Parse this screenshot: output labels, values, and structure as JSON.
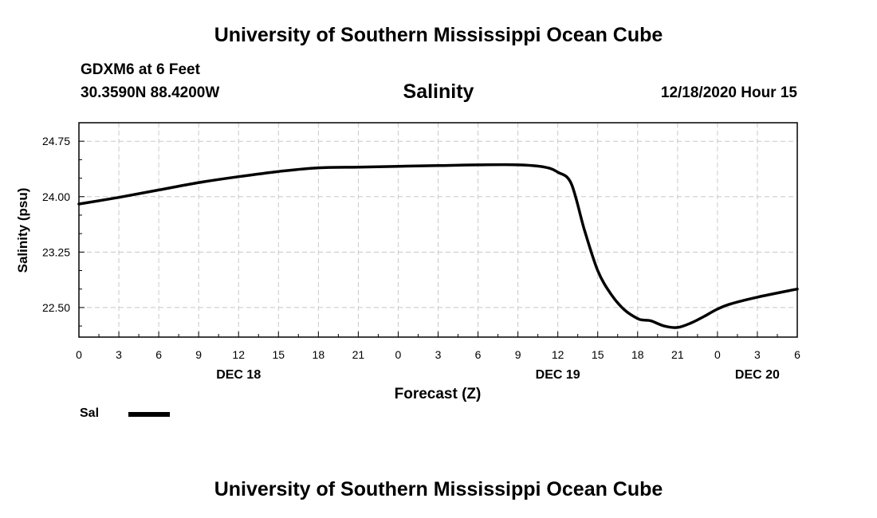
{
  "header": {
    "title": "University of Southern Mississippi Ocean Cube",
    "station": "GDXM6 at 6 Feet",
    "coords": "30.3590N 88.4200W",
    "date": "12/18/2020 Hour 15"
  },
  "footer": {
    "title": "University of Southern Mississippi Ocean Cube"
  },
  "legend": {
    "label": "Sal",
    "color": "#000000"
  },
  "chart_data": {
    "type": "line",
    "title": "Salinity",
    "xlabel": "Forecast (Z)",
    "ylabel": "Salinity (psu)",
    "xlim": [
      0,
      54
    ],
    "ylim": [
      22.1,
      25.0
    ],
    "grid": true,
    "x_ticks": [
      0,
      3,
      6,
      9,
      12,
      15,
      18,
      21,
      24,
      27,
      30,
      33,
      36,
      39,
      42,
      45,
      48,
      51,
      54
    ],
    "x_tick_labels": [
      "0",
      "3",
      "6",
      "9",
      "12",
      "15",
      "18",
      "21",
      "0",
      "3",
      "6",
      "9",
      "12",
      "15",
      "18",
      "21",
      "0",
      "3",
      "6"
    ],
    "y_ticks": [
      22.5,
      23.25,
      24.0,
      24.75
    ],
    "y_tick_labels": [
      "22.50",
      "23.25",
      "24.00",
      "24.75"
    ],
    "date_labels": [
      {
        "label": "DEC 18",
        "x": 12
      },
      {
        "label": "DEC 19",
        "x": 36
      },
      {
        "label": "DEC 20",
        "x": 51
      }
    ],
    "series": [
      {
        "name": "Sal",
        "x": [
          0,
          3,
          6,
          9,
          12,
          15,
          18,
          21,
          24,
          27,
          30,
          33,
          35,
          36,
          37,
          38,
          39,
          40,
          41,
          42,
          42.5,
          43,
          44,
          45,
          46,
          47,
          48,
          49,
          51,
          54
        ],
        "values": [
          23.9,
          23.99,
          24.09,
          24.19,
          24.27,
          24.34,
          24.39,
          24.4,
          24.41,
          24.42,
          24.43,
          24.43,
          24.4,
          24.33,
          24.18,
          23.55,
          23.0,
          22.68,
          22.47,
          22.35,
          22.33,
          22.32,
          22.25,
          22.23,
          22.29,
          22.38,
          22.48,
          22.55,
          22.64,
          22.75
        ]
      }
    ]
  }
}
